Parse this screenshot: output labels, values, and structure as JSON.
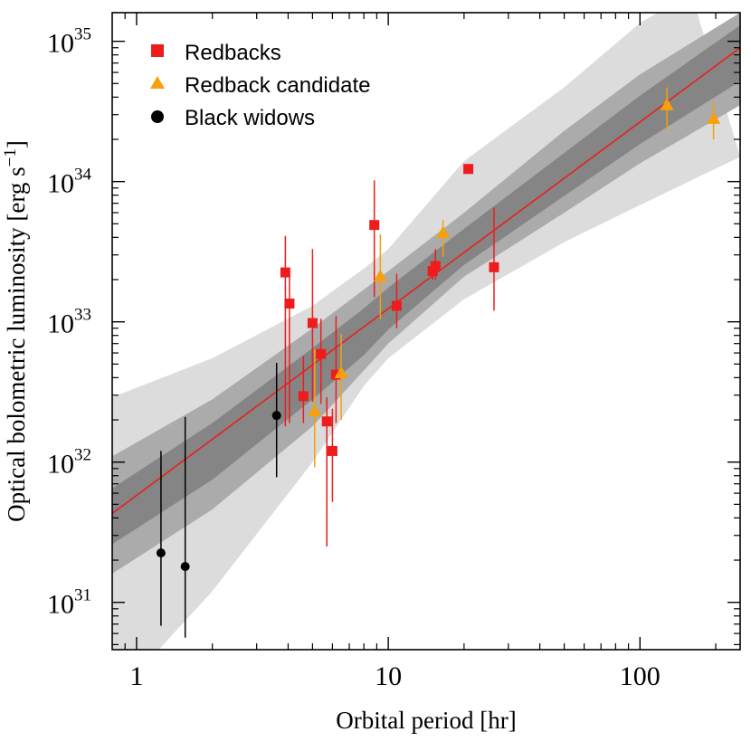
{
  "chart_data": {
    "type": "scatter",
    "xscale": "log",
    "yscale": "log",
    "xlim": [
      0.8,
      250
    ],
    "ylim": [
      4.6e+30,
      1.6e+35
    ],
    "xlabel": "Orbital period [hr]",
    "ylabel": {
      "main": "Optical bolometric luminosity [erg s",
      "exp": "−1",
      "close": "]"
    },
    "x_ticks": [
      {
        "value": 1,
        "label": "1"
      },
      {
        "value": 10,
        "label": "10"
      },
      {
        "value": 100,
        "label": "100"
      }
    ],
    "y_ticks": [
      {
        "value": 1e+31,
        "base": "10",
        "exp": "31"
      },
      {
        "value": 1e+32,
        "base": "10",
        "exp": "32"
      },
      {
        "value": 1e+33,
        "base": "10",
        "exp": "33"
      },
      {
        "value": 1e+34,
        "base": "10",
        "exp": "34"
      },
      {
        "value": 1e+35,
        "base": "10",
        "exp": "35"
      }
    ],
    "fit": {
      "color": "#e8201a",
      "line": [
        [
          0.8,
          4.3e+31
        ],
        [
          250,
          9e+34
        ]
      ],
      "bands": [
        {
          "color": "#dcdcdc",
          "upper": [
            [
              0.8,
              2.9e+32
            ],
            [
              2,
              5.5e+32
            ],
            [
              5,
              1.3e+33
            ],
            [
              8,
              2.4e+33
            ],
            [
              10,
              3.3e+33
            ],
            [
              20,
              1.4e+34
            ],
            [
              50,
              4.7e+34
            ],
            [
              100,
              1.35e+35
            ],
            [
              160,
              2.2e+35
            ]
          ],
          "lower": [
            [
              0.8,
              2e+30
            ],
            [
              2,
              1.2e+31
            ],
            [
              5,
              1e+32
            ],
            [
              8,
              3.5e+32
            ],
            [
              10,
              5.5e+32
            ],
            [
              20,
              1.45e+33
            ],
            [
              50,
              3.7e+33
            ],
            [
              100,
              6.8e+33
            ],
            [
              250,
              1.5e+34
            ]
          ]
        },
        {
          "color": "#ababab",
          "upper": [
            [
              0.8,
              1.1e+32
            ],
            [
              2,
              2.8e+32
            ],
            [
              5,
              9e+32
            ],
            [
              8,
              1.7e+33
            ],
            [
              10,
              2.3e+33
            ],
            [
              20,
              6e+33
            ],
            [
              50,
              2.3e+34
            ],
            [
              100,
              5.8e+34
            ],
            [
              250,
              1.6e+35
            ]
          ],
          "lower": [
            [
              0.8,
              1.6e+31
            ],
            [
              2,
              4.6e+31
            ],
            [
              5,
              1.8e+32
            ],
            [
              8,
              4.5e+32
            ],
            [
              10,
              7e+32
            ],
            [
              20,
              2.1e+33
            ],
            [
              50,
              6e+33
            ],
            [
              100,
              1.35e+34
            ],
            [
              250,
              3.5e+34
            ]
          ]
        },
        {
          "color": "#858585",
          "upper": [
            [
              0.8,
              6.5e+31
            ],
            [
              2,
              1.9e+32
            ],
            [
              5,
              6.5e+32
            ],
            [
              8,
              1.25e+33
            ],
            [
              10,
              1.75e+33
            ],
            [
              20,
              4.6e+33
            ],
            [
              50,
              1.6e+34
            ],
            [
              100,
              4.1e+34
            ],
            [
              250,
              1.3e+35
            ]
          ],
          "lower": [
            [
              0.8,
              2.6e+31
            ],
            [
              2,
              7.5e+31
            ],
            [
              5,
              2.8e+32
            ],
            [
              8,
              5.8e+32
            ],
            [
              10,
              8.8e+32
            ],
            [
              20,
              2.55e+33
            ],
            [
              50,
              7.9e+33
            ],
            [
              100,
              1.85e+34
            ],
            [
              250,
              5.2e+34
            ]
          ]
        }
      ]
    },
    "series": [
      {
        "name": "Redbacks",
        "marker": "square",
        "color": "#ee1c1c",
        "points": [
          {
            "x": 3.9,
            "y": 2.25e+33,
            "ylo": 1.8e+32,
            "yhi": 4.1e+33
          },
          {
            "x": 4.05,
            "y": 1.35e+33,
            "ylo": 1.9e+32,
            "yhi": 2.1e+33
          },
          {
            "x": 4.6,
            "y": 2.95e+32,
            "ylo": 1.9e+32,
            "yhi": 5.7e+32
          },
          {
            "x": 5.0,
            "y": 9.8e+32,
            "ylo": 2.7e+32,
            "yhi": 3.3e+33
          },
          {
            "x": 5.4,
            "y": 5.9e+32,
            "ylo": 2.6e+32,
            "yhi": 1.05e+33
          },
          {
            "x": 5.7,
            "y": 1.95e+32,
            "ylo": 2.5e+31,
            "yhi": 2.9e+32
          },
          {
            "x": 6.0,
            "y": 1.2e+32,
            "ylo": 5.2e+31,
            "yhi": 2.4e+32
          },
          {
            "x": 6.2,
            "y": 4.2e+32,
            "ylo": 1.9e+32,
            "yhi": 1.1e+33
          },
          {
            "x": 8.8,
            "y": 4.9e+33,
            "ylo": 1.5e+33,
            "yhi": 1.02e+34
          },
          {
            "x": 10.8,
            "y": 1.3e+33,
            "ylo": 9e+32,
            "yhi": 2.2e+33
          },
          {
            "x": 15.0,
            "y": 2.3e+33,
            "ylo": 2e+33,
            "yhi": 2.6e+33
          },
          {
            "x": 15.4,
            "y": 2.5e+33,
            "ylo": 2e+33,
            "yhi": 3.3e+33
          },
          {
            "x": 20.8,
            "y": 1.23e+34,
            "ylo": 1.23e+34,
            "yhi": 1.23e+34
          },
          {
            "x": 26.3,
            "y": 2.45e+33,
            "ylo": 1.2e+33,
            "yhi": 6.5e+33
          }
        ]
      },
      {
        "name": "Redback candidate",
        "marker": "triangle",
        "color": "#f5a00c",
        "points": [
          {
            "x": 5.1,
            "y": 2.3e+32,
            "ylo": 9.2e+31,
            "yhi": 6.4e+32
          },
          {
            "x": 6.5,
            "y": 4.3e+32,
            "ylo": 2e+32,
            "yhi": 8.2e+32
          },
          {
            "x": 9.3,
            "y": 2.1e+33,
            "ylo": 1.05e+33,
            "yhi": 4.2e+33
          },
          {
            "x": 16.5,
            "y": 4.3e+33,
            "ylo": 2.9e+33,
            "yhi": 5.3e+33
          },
          {
            "x": 128,
            "y": 3.5e+34,
            "ylo": 2.3e+34,
            "yhi": 4.7e+34
          },
          {
            "x": 196,
            "y": 2.8e+34,
            "ylo": 2e+34,
            "yhi": 3.7e+34
          }
        ]
      },
      {
        "name": "Black widows",
        "marker": "circle",
        "color": "#000000",
        "points": [
          {
            "x": 1.25,
            "y": 2.25e+31,
            "ylo": 6.8e+30,
            "yhi": 1.2e+32
          },
          {
            "x": 1.56,
            "y": 1.8e+31,
            "ylo": 5.6e+30,
            "yhi": 2.1e+32
          },
          {
            "x": 3.6,
            "y": 2.15e+32,
            "ylo": 7.8e+31,
            "yhi": 5.1e+32
          }
        ]
      }
    ],
    "legend": {
      "position": "top-left"
    }
  }
}
